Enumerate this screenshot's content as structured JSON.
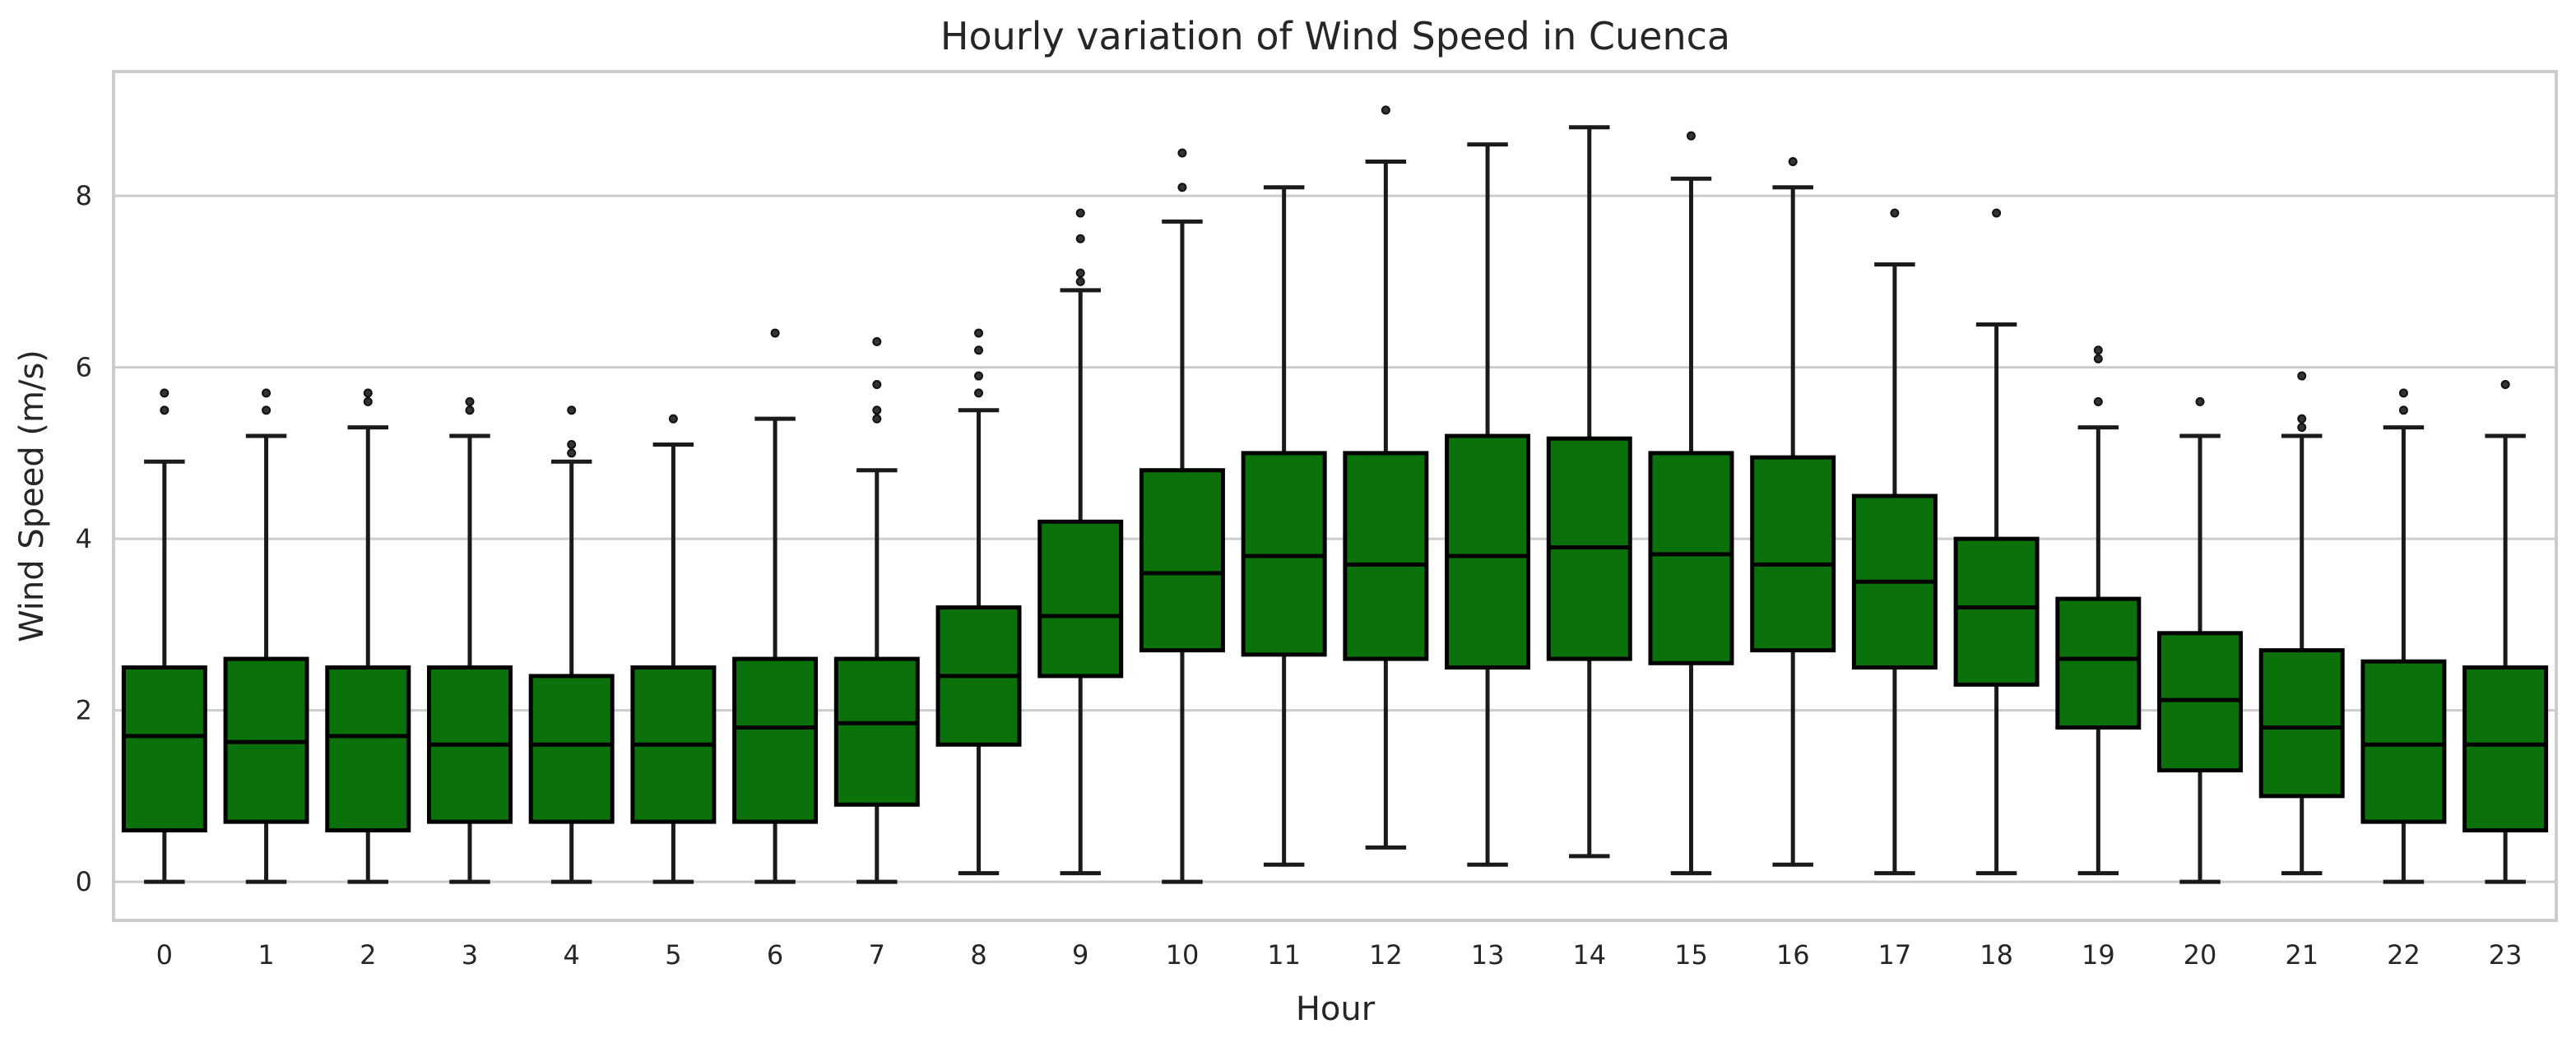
{
  "chart_data": {
    "type": "box",
    "title": "Hourly variation of Wind Speed in Cuenca",
    "xlabel": "Hour",
    "ylabel": "Wind Speed (m/s)",
    "ylim": [
      -0.45,
      9.45
    ],
    "yticks": [
      0,
      2,
      4,
      6,
      8
    ],
    "grid": "y",
    "box_color": "#0b720b",
    "categories": [
      "0",
      "1",
      "2",
      "3",
      "4",
      "5",
      "6",
      "7",
      "8",
      "9",
      "10",
      "11",
      "12",
      "13",
      "14",
      "15",
      "16",
      "17",
      "18",
      "19",
      "20",
      "21",
      "22",
      "23"
    ],
    "boxes": [
      {
        "whislo": 0.0,
        "q1": 0.6,
        "med": 1.7,
        "q3": 2.5,
        "whishi": 4.9,
        "fliers": [
          5.5,
          5.7
        ]
      },
      {
        "whislo": 0.0,
        "q1": 0.7,
        "med": 1.63,
        "q3": 2.6,
        "whishi": 5.2,
        "fliers": [
          5.5,
          5.7
        ]
      },
      {
        "whislo": 0.0,
        "q1": 0.6,
        "med": 1.7,
        "q3": 2.5,
        "whishi": 5.3,
        "fliers": [
          5.6,
          5.7
        ]
      },
      {
        "whislo": 0.0,
        "q1": 0.7,
        "med": 1.6,
        "q3": 2.5,
        "whishi": 5.2,
        "fliers": [
          5.5,
          5.6
        ]
      },
      {
        "whislo": 0.0,
        "q1": 0.7,
        "med": 1.6,
        "q3": 2.4,
        "whishi": 4.9,
        "fliers": [
          5.0,
          5.1,
          5.5
        ]
      },
      {
        "whislo": 0.0,
        "q1": 0.7,
        "med": 1.6,
        "q3": 2.5,
        "whishi": 5.1,
        "fliers": [
          5.4
        ]
      },
      {
        "whislo": 0.0,
        "q1": 0.7,
        "med": 1.8,
        "q3": 2.6,
        "whishi": 5.4,
        "fliers": [
          6.4
        ]
      },
      {
        "whislo": 0.0,
        "q1": 0.9,
        "med": 1.85,
        "q3": 2.6,
        "whishi": 4.8,
        "fliers": [
          5.4,
          5.5,
          5.8,
          6.3
        ]
      },
      {
        "whislo": 0.1,
        "q1": 1.6,
        "med": 2.4,
        "q3": 3.2,
        "whishi": 5.5,
        "fliers": [
          5.7,
          5.9,
          6.2,
          6.4
        ]
      },
      {
        "whislo": 0.1,
        "q1": 2.4,
        "med": 3.1,
        "q3": 4.2,
        "whishi": 6.9,
        "fliers": [
          7.0,
          7.1,
          7.5,
          7.8
        ]
      },
      {
        "whislo": 0.0,
        "q1": 2.7,
        "med": 3.6,
        "q3": 4.8,
        "whishi": 7.7,
        "fliers": [
          8.1,
          8.5
        ]
      },
      {
        "whislo": 0.2,
        "q1": 2.65,
        "med": 3.8,
        "q3": 5.0,
        "whishi": 8.1,
        "fliers": []
      },
      {
        "whislo": 0.4,
        "q1": 2.6,
        "med": 3.7,
        "q3": 5.0,
        "whishi": 8.4,
        "fliers": [
          9.0
        ]
      },
      {
        "whislo": 0.2,
        "q1": 2.5,
        "med": 3.8,
        "q3": 5.2,
        "whishi": 8.6,
        "fliers": []
      },
      {
        "whislo": 0.3,
        "q1": 2.6,
        "med": 3.9,
        "q3": 5.17,
        "whishi": 8.8,
        "fliers": []
      },
      {
        "whislo": 0.1,
        "q1": 2.55,
        "med": 3.82,
        "q3": 5.0,
        "whishi": 8.2,
        "fliers": [
          8.7
        ]
      },
      {
        "whislo": 0.2,
        "q1": 2.7,
        "med": 3.7,
        "q3": 4.95,
        "whishi": 8.1,
        "fliers": [
          8.4
        ]
      },
      {
        "whislo": 0.1,
        "q1": 2.5,
        "med": 3.5,
        "q3": 4.5,
        "whishi": 7.2,
        "fliers": [
          7.8
        ]
      },
      {
        "whislo": 0.1,
        "q1": 2.3,
        "med": 3.2,
        "q3": 4.0,
        "whishi": 6.5,
        "fliers": [
          7.8
        ]
      },
      {
        "whislo": 0.1,
        "q1": 1.8,
        "med": 2.6,
        "q3": 3.3,
        "whishi": 5.3,
        "fliers": [
          5.6,
          6.1,
          6.2
        ]
      },
      {
        "whislo": 0.0,
        "q1": 1.3,
        "med": 2.12,
        "q3": 2.9,
        "whishi": 5.2,
        "fliers": [
          5.6
        ]
      },
      {
        "whislo": 0.1,
        "q1": 1.0,
        "med": 1.8,
        "q3": 2.7,
        "whishi": 5.2,
        "fliers": [
          5.3,
          5.4,
          5.9
        ]
      },
      {
        "whislo": 0.0,
        "q1": 0.7,
        "med": 1.6,
        "q3": 2.57,
        "whishi": 5.3,
        "fliers": [
          5.5,
          5.7
        ]
      },
      {
        "whislo": 0.0,
        "q1": 0.6,
        "med": 1.6,
        "q3": 2.5,
        "whishi": 5.2,
        "fliers": [
          5.8
        ]
      }
    ]
  }
}
